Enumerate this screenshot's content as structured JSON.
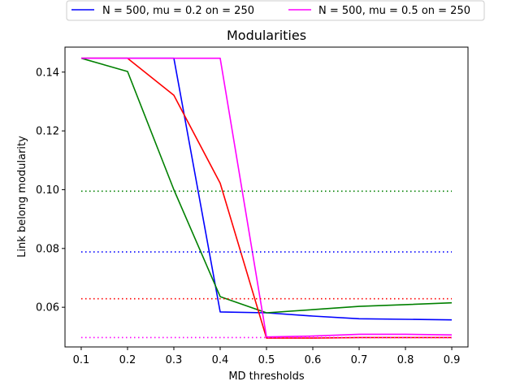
{
  "chart_data": {
    "type": "line",
    "title": "Modularities",
    "xlabel": "MD thresholds",
    "ylabel": "Link belong modularity",
    "xlim": [
      0.065,
      0.935
    ],
    "ylim": [
      0.0465,
      0.1485
    ],
    "x": [
      0.1,
      0.2,
      0.3,
      0.4,
      0.5,
      0.6,
      0.7,
      0.8,
      0.9
    ],
    "x_ticks": [
      "0.1",
      "0.2",
      "0.3",
      "0.4",
      "0.5",
      "0.6",
      "0.7",
      "0.8",
      "0.9"
    ],
    "y_ticks": [
      0.06,
      0.08,
      0.1,
      0.12,
      0.14
    ],
    "y_tick_labels": [
      "0.06",
      "0.08",
      "0.10",
      "0.12",
      "0.14"
    ],
    "grid": false,
    "legend_placement": "top-center, above the axes",
    "series": [
      {
        "name": "N = 500, mu = 0.2 on = 250",
        "color": "#0000ff",
        "style": "solid",
        "values": [
          0.1447,
          0.1447,
          0.1447,
          0.0584,
          0.0581,
          0.057,
          0.0561,
          0.0559,
          0.0557
        ]
      },
      {
        "name": "",
        "color": "#008000",
        "style": "solid",
        "values": [
          0.1447,
          0.1402,
          0.1,
          0.0636,
          0.0581,
          0.0592,
          0.0603,
          0.0609,
          0.0615
        ]
      },
      {
        "name": "",
        "color": "#ff0000",
        "style": "solid",
        "values": [
          0.1447,
          0.1447,
          0.1321,
          0.1022,
          0.0495,
          0.0495,
          0.0497,
          0.0497,
          0.0497
        ]
      },
      {
        "name": "N = 500, mu = 0.5 on = 250",
        "color": "#ff00ff",
        "style": "solid",
        "values": [
          0.1447,
          0.1447,
          0.1447,
          0.1447,
          0.0499,
          0.0502,
          0.0508,
          0.0508,
          0.0506
        ]
      },
      {
        "name": "",
        "color": "#008000",
        "style": "dotted",
        "values": [
          0.0995,
          0.0995,
          0.0995,
          0.0995,
          0.0995,
          0.0995,
          0.0995,
          0.0995,
          0.0995
        ]
      },
      {
        "name": "",
        "color": "#0000ff",
        "style": "dotted",
        "values": [
          0.0788,
          0.0788,
          0.0788,
          0.0788,
          0.0788,
          0.0788,
          0.0788,
          0.0788,
          0.0788
        ]
      },
      {
        "name": "",
        "color": "#ff0000",
        "style": "dotted",
        "values": [
          0.0629,
          0.0629,
          0.0629,
          0.0629,
          0.0629,
          0.0629,
          0.0629,
          0.0629,
          0.0629
        ]
      },
      {
        "name": "",
        "color": "#ff00ff",
        "style": "dotted",
        "values": [
          0.0497,
          0.0497,
          0.0497,
          0.0497,
          0.0497,
          0.0497,
          0.0497,
          0.0497,
          0.0497
        ]
      }
    ],
    "legend": [
      {
        "label": "N = 500, mu = 0.2 on = 250",
        "color": "#0000ff"
      },
      {
        "label": "N = 500, mu = 0.5 on = 250",
        "color": "#ff00ff"
      }
    ]
  }
}
